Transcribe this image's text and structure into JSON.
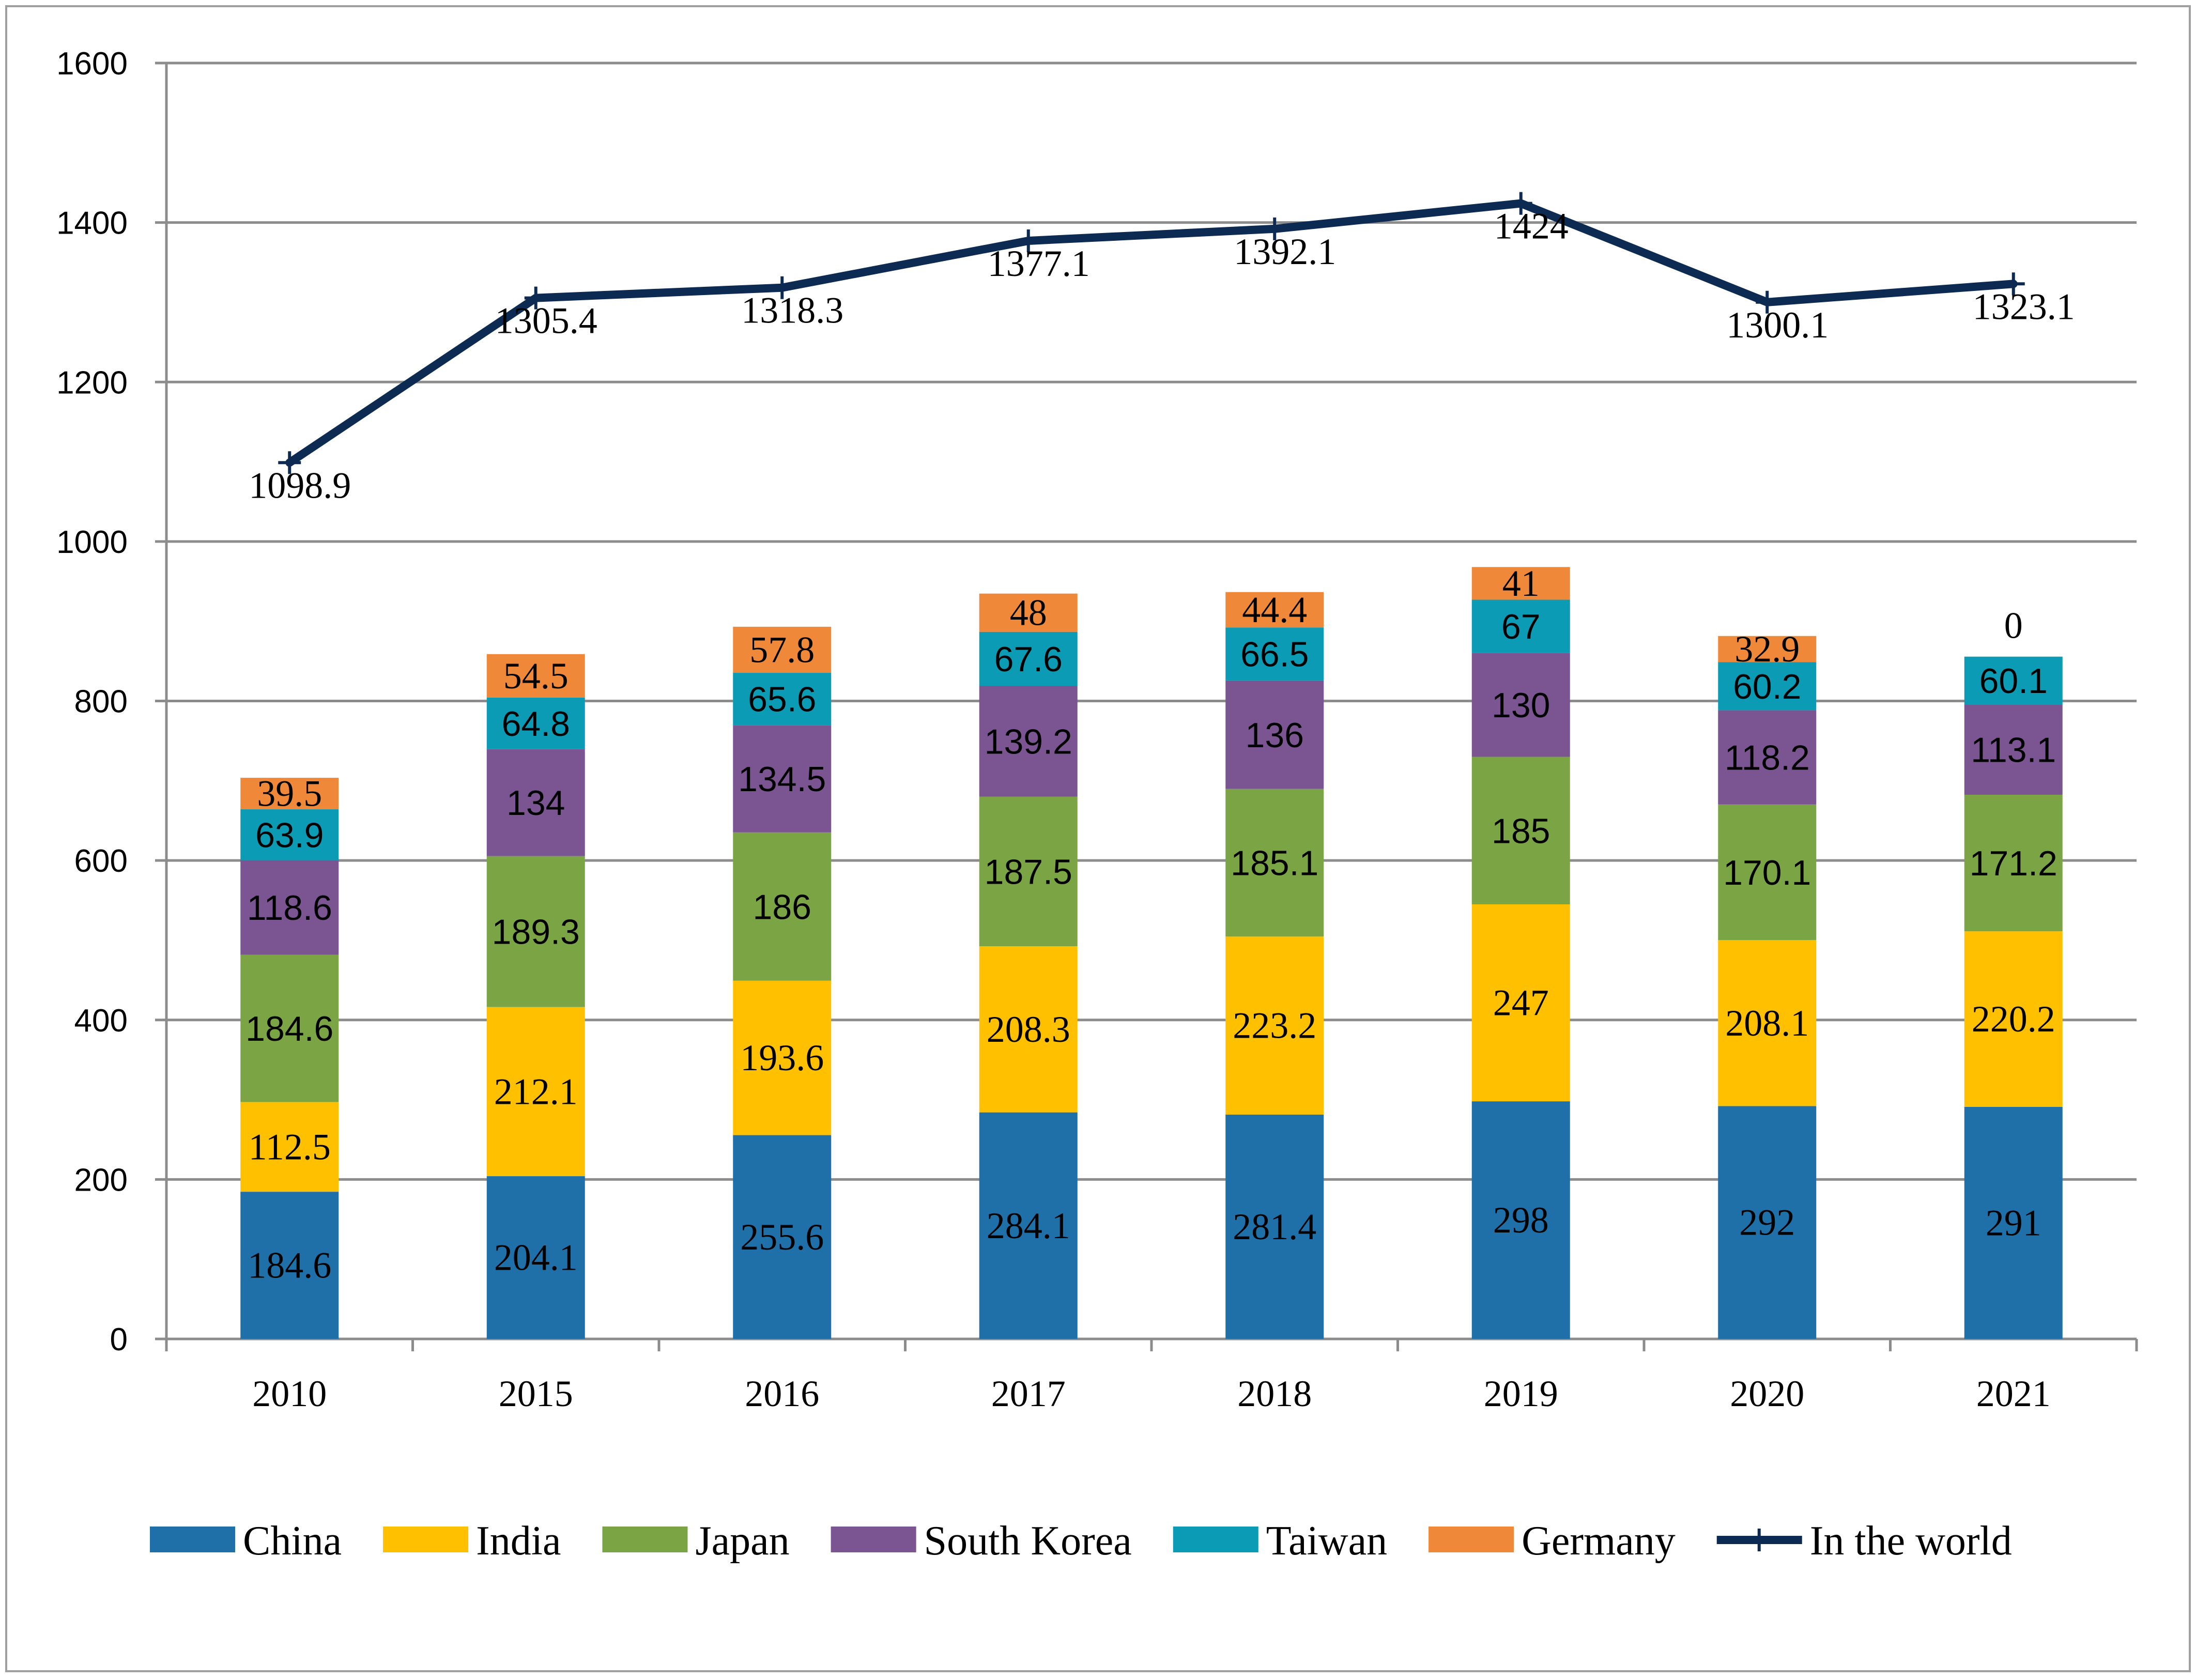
{
  "chart_data": {
    "type": "bar",
    "stacked": true,
    "categories": [
      "2010",
      "2015",
      "2016",
      "2017",
      "2018",
      "2019",
      "2020",
      "2021"
    ],
    "ylim": [
      0,
      1600
    ],
    "yticks": [
      "0",
      "200",
      "400",
      "600",
      "800",
      "1000",
      "1200",
      "1400",
      "1600"
    ],
    "grid": true,
    "legend_position": "bottom",
    "series": [
      {
        "name": "China",
        "color": "#1f6fa9",
        "values": [
          184.6,
          204.1,
          255.6,
          284.1,
          281.4,
          298,
          292,
          291
        ],
        "labels": [
          "184.6",
          "204.1",
          "255.6",
          "284.1",
          "281.4",
          "298",
          "292",
          "291"
        ]
      },
      {
        "name": "India",
        "color": "#ffc000",
        "values": [
          112.5,
          212.1,
          193.6,
          208.3,
          223.2,
          247,
          208.1,
          220.2
        ],
        "labels": [
          "112.5",
          "212.1",
          "193.6",
          "208.3",
          "223.2",
          "247",
          "208.1",
          "220.2"
        ]
      },
      {
        "name": "Japan",
        "color": "#7ba545",
        "values": [
          184.6,
          189.3,
          186,
          187.5,
          185.1,
          185,
          170.1,
          171.2
        ],
        "labels": [
          "184.6",
          "189.3",
          "186",
          "187.5",
          "185.1",
          "185",
          "170.1",
          "171.2"
        ]
      },
      {
        "name": "South Korea",
        "color": "#7a5592",
        "values": [
          118.6,
          134,
          134.5,
          139.2,
          136,
          130,
          118.2,
          113.1
        ],
        "labels": [
          "118.6",
          "134",
          "134.5",
          "139.2",
          "136",
          "130",
          "118.2",
          "113.1"
        ]
      },
      {
        "name": "Taiwan",
        "color": "#0b9bb5",
        "values": [
          63.9,
          64.8,
          65.6,
          67.6,
          66.5,
          67,
          60.2,
          60.1
        ],
        "labels": [
          "63.9",
          "64.8",
          "65.6",
          "67.6",
          "66.5",
          "67",
          "60.2",
          "60.1"
        ]
      },
      {
        "name": "Germany",
        "color": "#f0883a",
        "values": [
          39.5,
          54.5,
          57.8,
          48,
          44.4,
          41,
          32.9,
          0
        ],
        "labels": [
          "39.5",
          "54.5",
          "57.8",
          "48",
          "44.4",
          "41",
          "32.9",
          "0"
        ]
      }
    ],
    "line_series": {
      "name": "In the world",
      "color": "#0d2b52",
      "values": [
        1098.9,
        1305.4,
        1318.3,
        1377.1,
        1392.1,
        1424,
        1300.1,
        1323.1
      ],
      "labels": [
        "1098.9",
        "1305.4",
        "1318.3",
        "1377.1",
        "1392.1",
        "1424",
        "1300.1",
        "1323.1"
      ]
    }
  }
}
